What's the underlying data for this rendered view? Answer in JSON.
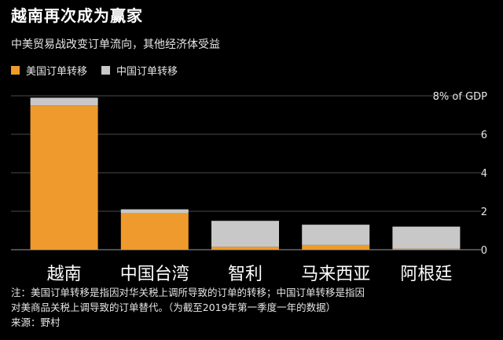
{
  "title": "越南再次成为赢家",
  "subtitle": "中美贸易战改变订单流向，其他经济体受益",
  "legend": [
    {
      "name": "美国订单转移",
      "color": "#ef9a2c"
    },
    {
      "name": "中国订单转移",
      "color": "#c8c8c8"
    }
  ],
  "notes": {
    "line1": "注：美国订单转移是指因对华关税上调所导致的订单的转移；中国订单转移是指因",
    "line2": "对美商品关税上调导致的订单替代。（为截至2019年第一季度一年的数据）",
    "source": "来源：野村"
  },
  "chart_data": {
    "type": "bar",
    "stacked": true,
    "categories": [
      "越南",
      "中国台湾",
      "智利",
      "马来西亚",
      "阿根廷"
    ],
    "series": [
      {
        "name": "美国订单转移",
        "color": "#ef9a2c",
        "values": [
          7.5,
          1.9,
          0.15,
          0.25,
          0.05
        ]
      },
      {
        "name": "中国订单转移",
        "color": "#c8c8c8",
        "values": [
          0.4,
          0.2,
          1.35,
          1.05,
          1.15
        ]
      }
    ],
    "ylim": [
      0,
      8
    ],
    "yticks": [
      {
        "value": 0,
        "label": "0"
      },
      {
        "value": 2,
        "label": "2"
      },
      {
        "value": 4,
        "label": "4"
      },
      {
        "value": 6,
        "label": "6"
      },
      {
        "value": 8,
        "label": "8% of GDP"
      }
    ],
    "grid": true
  }
}
